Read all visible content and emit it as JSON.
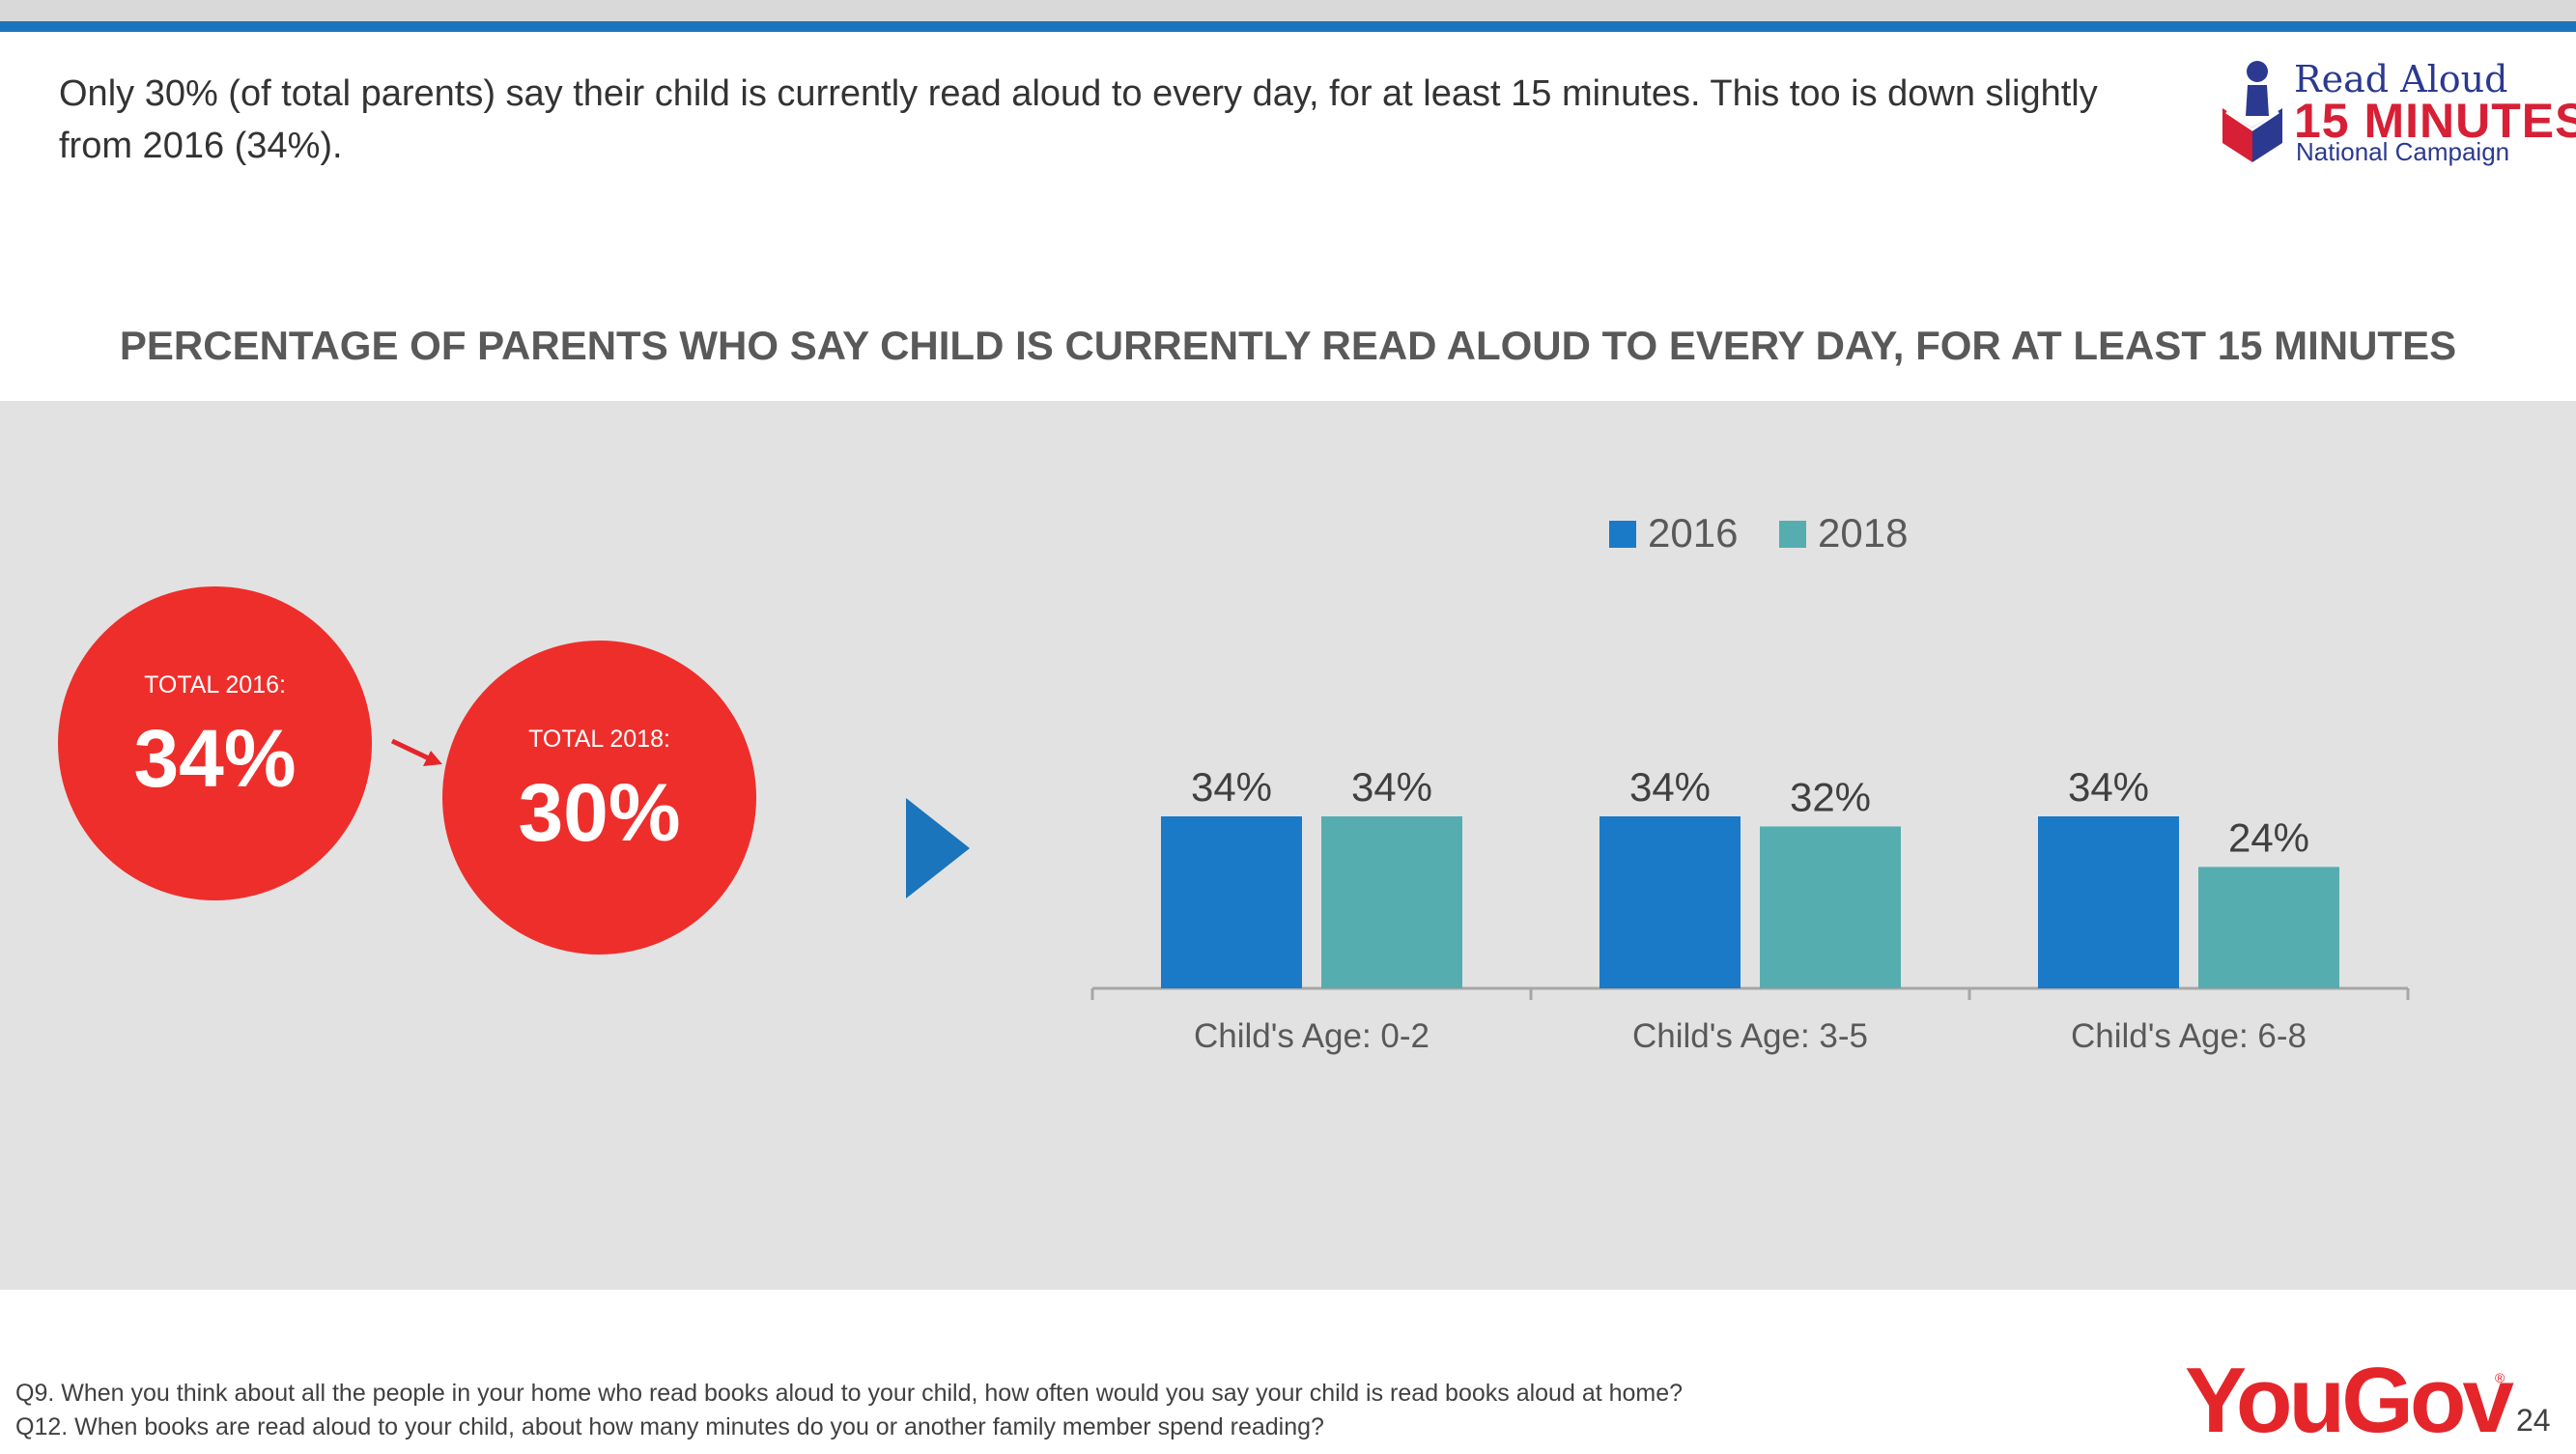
{
  "headline": "Only 30% (of total parents) say their child is currently read aloud to every day, for at least 15 minutes. This too is down slightly from 2016 (34%).",
  "logo": {
    "line1": "Read Aloud",
    "line2": "15 MINUTES",
    "line3": "National Campaign"
  },
  "chart_title": "PERCENTAGE OF PARENTS WHO SAY CHILD IS CURRENTLY READ ALOUD TO EVERY DAY, FOR AT LEAST 15 MINUTES",
  "totals": {
    "t2016_label": "TOTAL 2016:",
    "t2016_value": "34%",
    "t2018_label": "TOTAL 2018:",
    "t2018_value": "30%"
  },
  "chart_data": {
    "type": "bar",
    "title": "PERCENTAGE OF PARENTS WHO SAY CHILD IS CURRENTLY READ ALOUD TO EVERY DAY, FOR AT LEAST 15 MINUTES",
    "categories": [
      "Child's Age: 0-2",
      "Child's Age: 3-5",
      "Child's Age: 6-8"
    ],
    "series": [
      {
        "name": "2016",
        "values": [
          34,
          34,
          34
        ],
        "color": "#1a7ac8"
      },
      {
        "name": "2018",
        "values": [
          34,
          32,
          24
        ],
        "color": "#56adb0"
      }
    ],
    "value_suffix": "%",
    "ylim": [
      0,
      34
    ],
    "legend_position": "top",
    "grid": false
  },
  "colors": {
    "accent_blue": "#1a75bc",
    "circle_red": "#ee2e2b",
    "panel_gray": "#e2e2e2"
  },
  "footnotes": [
    "Q9. When you think about all the people in your home who read books aloud to your child, how often would you say your child is read books aloud at home?",
    "Q12. When books are read aloud to your child, about how many minutes do you or another family member spend reading?"
  ],
  "brand": "YouGov",
  "page_number": "24"
}
